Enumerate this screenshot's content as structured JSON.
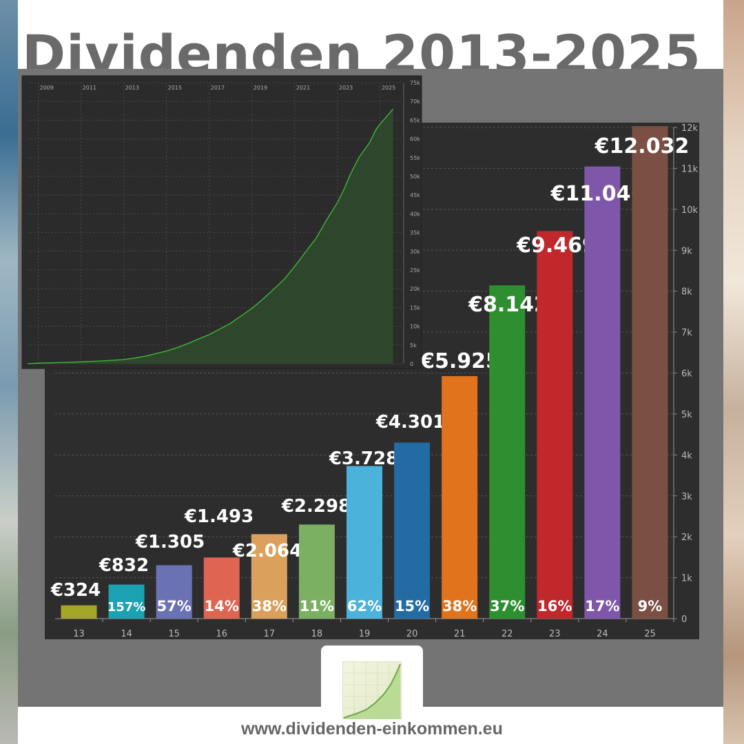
{
  "page_title": "Dividenden 2013-2025",
  "footer_url": "www.dividenden-einkommen.eu",
  "logo_icon": "rising-chart-logo-icon",
  "chart_data": [
    {
      "type": "bar",
      "categories": [
        "13",
        "14",
        "15",
        "16",
        "17",
        "18",
        "19",
        "20",
        "21",
        "22",
        "23",
        "24",
        "25"
      ],
      "values": [
        324,
        832,
        1305,
        1493,
        2064,
        2298,
        3728,
        4301,
        5925,
        8142,
        9469,
        11046,
        12032
      ],
      "value_labels": [
        "€324",
        "€832",
        "€1.305",
        "€1.493",
        "€2.064",
        "€2.298",
        "€3.728",
        "€4.301",
        "€5.925",
        "€8.142",
        "€9.469",
        "€11.046",
        "€12.032"
      ],
      "growth_labels": [
        "",
        "157%",
        "57%",
        "14%",
        "38%",
        "11%",
        "62%",
        "15%",
        "38%",
        "37%",
        "16%",
        "17%",
        "9%"
      ],
      "colors": [
        "#a4a627",
        "#1ba2b2",
        "#6b72b4",
        "#df6552",
        "#daa05c",
        "#7bb062",
        "#4bb2db",
        "#226ba3",
        "#e0731c",
        "#2d8f2f",
        "#c0282c",
        "#7e57aa",
        "#7b4f43"
      ],
      "ylim": [
        0,
        12000
      ],
      "yticks": [
        "0",
        "1k",
        "2k",
        "3k",
        "4k",
        "5k",
        "6k",
        "7k",
        "8k",
        "9k",
        "10k",
        "11k",
        "12k"
      ],
      "grid": true
    },
    {
      "type": "area",
      "x": [
        2008.5,
        2009,
        2010,
        2011,
        2012,
        2013,
        2013.5,
        2014,
        2014.5,
        2015,
        2015.5,
        2016,
        2016.5,
        2017,
        2017.5,
        2018,
        2018.5,
        2019,
        2019.5,
        2020,
        2020.5,
        2021,
        2021.5,
        2022,
        2022.5,
        2023,
        2023.3,
        2023.6,
        2024,
        2024.5,
        2024.8,
        2025,
        2025.3,
        2025.6
      ],
      "y": [
        0,
        150,
        300,
        500,
        750,
        1100,
        1500,
        2000,
        2700,
        3400,
        4300,
        5400,
        6600,
        7800,
        9300,
        10800,
        12800,
        14800,
        17200,
        19800,
        22500,
        26000,
        29800,
        33500,
        38500,
        43000,
        46500,
        50500,
        55000,
        59000,
        62500,
        64000,
        66000,
        68000
      ],
      "xticks": [
        "2009",
        "2011",
        "2013",
        "2015",
        "2017",
        "2019",
        "2021",
        "2023",
        "2025"
      ],
      "yticks": [
        "0",
        "5k",
        "10k",
        "15k",
        "20k",
        "25k",
        "30k",
        "35k",
        "40k",
        "45k",
        "50k",
        "55k",
        "60k",
        "65k",
        "70k",
        "75k"
      ],
      "xlim": [
        2008.5,
        2026
      ],
      "ylim": [
        0,
        75000
      ],
      "grid": true
    }
  ]
}
